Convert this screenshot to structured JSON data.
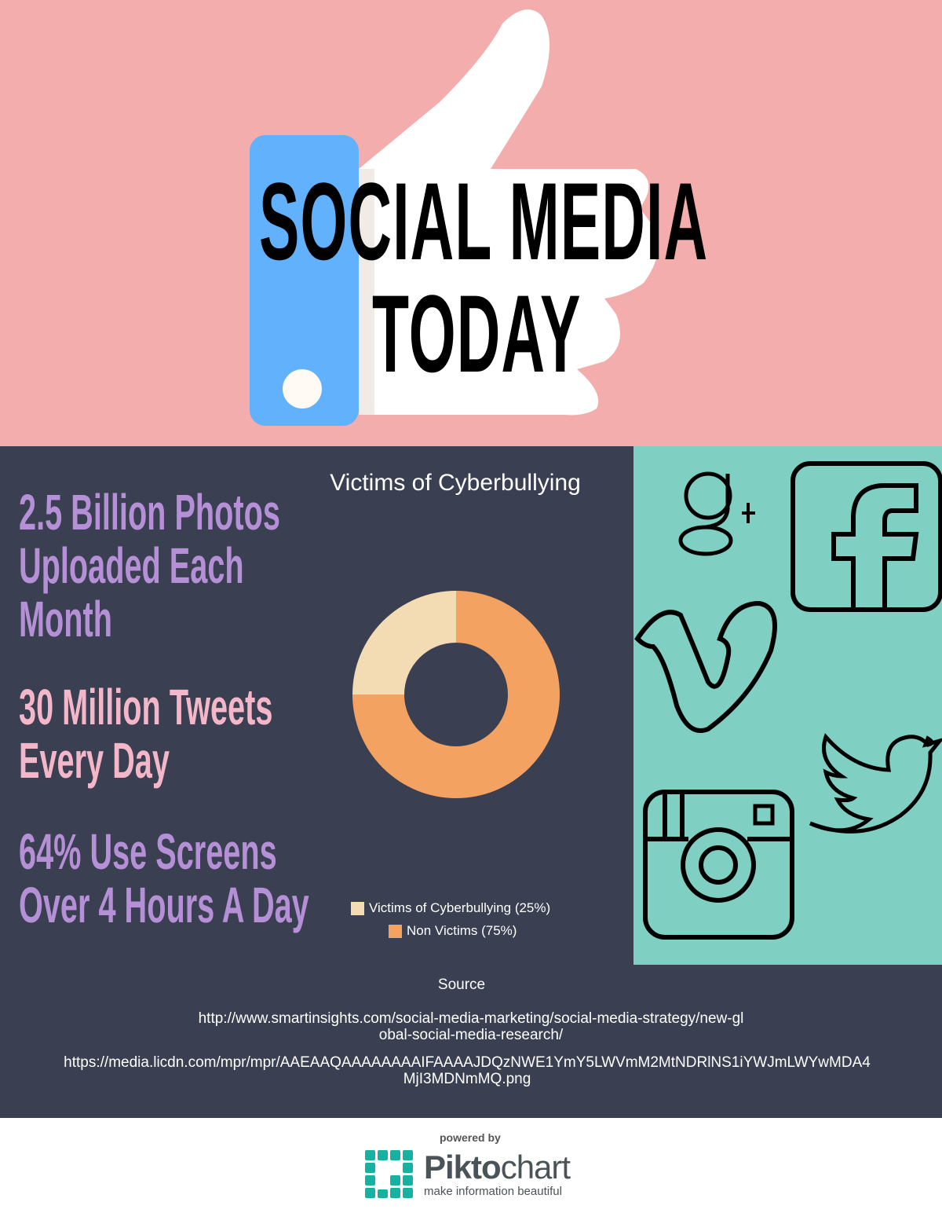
{
  "header": {
    "title_line1": "SOCIAL MEDIA",
    "title_line2": "TODAY"
  },
  "stats": [
    {
      "lines": [
        "2.5 Billion Photos",
        "Uploaded Each",
        "Month"
      ]
    },
    {
      "lines": [
        "30 Million Tweets",
        "Every Day"
      ]
    },
    {
      "lines": [
        "64% Use Screens",
        "Over 4 Hours A Day"
      ]
    }
  ],
  "chart_data": {
    "type": "pie",
    "donut": true,
    "title": "Victims of Cyberbullying",
    "categories": [
      "Victims of Cyberbullying",
      "Non Victims"
    ],
    "values": [
      25,
      75
    ],
    "legend_labels": [
      "Victims of Cyberbullying (25%)",
      "Non Victims (75%)"
    ],
    "colors": [
      "#f3dcb4",
      "#f3a261"
    ],
    "legend": "bottom"
  },
  "icons": [
    "google-plus-icon",
    "facebook-icon",
    "vimeo-icon",
    "twitter-icon",
    "instagram-icon"
  ],
  "source": {
    "label": "Source",
    "links": [
      "http://www.smartinsights.com/social-media-marketing/social-media-strategy/new-global-social-media-research/",
      "https://media.licdn.com/mpr/mpr/AAEAAQAAAAAAAAIFAAAAJDQzNWE1YmY5LWVmM2MtNDRlNS1iYWJmLWYwMDA4MjI3MDNmMQ.png"
    ]
  },
  "footer": {
    "powered_by": "powered by",
    "brand_bold": "Pikto",
    "brand_light": "chart",
    "tagline": "make information beautiful"
  },
  "colors": {
    "pink_bg": "#f3adad",
    "dark_bg": "#3a4052",
    "teal_bg": "#7fcfc3",
    "thumb_blue": "#62b1fc"
  }
}
